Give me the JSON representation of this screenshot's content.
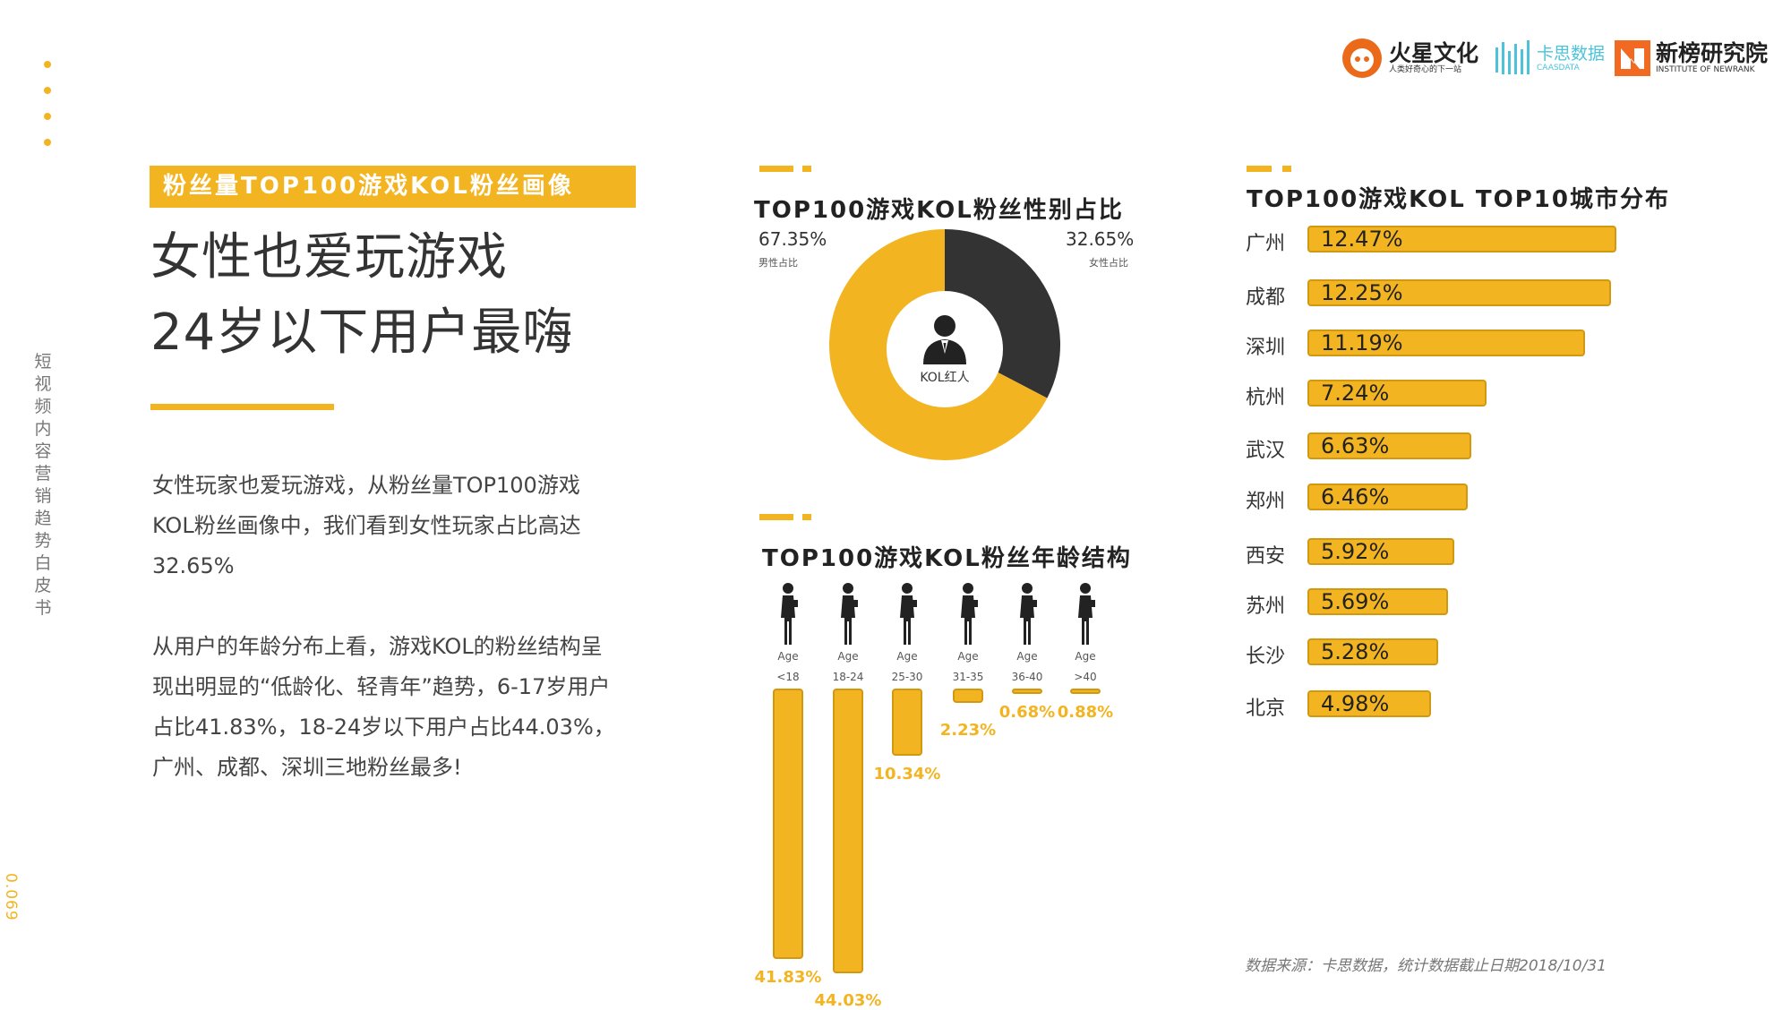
{
  "brand": {
    "logo1_name": "火星文化",
    "logo1_sub": "人类好奇心的下一站",
    "logo2_name": "卡思数据",
    "logo2_sub": "CAASDATA",
    "logo3_name": "新榜研究院",
    "logo3_sub": "INSTITUTE OF NEWRANK",
    "accent": "#f3b421",
    "dark": "#333333"
  },
  "side": {
    "vertical_title": "短视频内容营销趋势白皮书",
    "page_number": "0.069"
  },
  "left": {
    "tag": "粉丝量TOP100游戏KOL粉丝画像",
    "title_line1": "女性也爱玩游戏",
    "title_line2": "24岁以下用户最嗨",
    "para1": "女性玩家也爱玩游戏，从粉丝量TOP100游戏KOL粉丝画像中，我们看到女性玩家占比高达32.65%",
    "para2": "从用户的年龄分布上看，游戏KOL的粉丝结构呈现出明显的“低龄化、轻青年”趋势，6-17岁用户占比41.83%，18-24岁以下用户占比44.03%，广州、成都、深圳三地粉丝最多!"
  },
  "gender": {
    "title": "TOP100游戏KOL粉丝性别占比",
    "male_pct": "67.35%",
    "male_label": "男性占比",
    "female_pct": "32.65%",
    "female_label": "女性占比",
    "center_label": "KOL红人"
  },
  "age": {
    "title": "TOP100游戏KOL粉丝年龄结构",
    "age_word": "Age"
  },
  "city": {
    "title": "TOP100游戏KOL  TOP10城市分布"
  },
  "source": "数据来源：卡思数据，统计数据截止日期2018/10/31",
  "chart_data": [
    {
      "type": "pie",
      "title": "TOP100游戏KOL粉丝性别占比",
      "categories": [
        "男性占比",
        "女性占比"
      ],
      "values": [
        67.35,
        32.65
      ],
      "colors": [
        "#f3b421",
        "#333333"
      ]
    },
    {
      "type": "bar",
      "title": "TOP100游戏KOL粉丝年龄结构",
      "categories": [
        "<18",
        "18-24",
        "25-30",
        "31-35",
        "36-40",
        ">40"
      ],
      "values": [
        41.83,
        44.03,
        10.34,
        2.23,
        0.68,
        0.88
      ],
      "labels": [
        "41.83%",
        "44.03%",
        "10.34%",
        "2.23%",
        "0.68%",
        "0.88%"
      ]
    },
    {
      "type": "bar",
      "title": "TOP100游戏KOL  TOP10城市分布",
      "categories": [
        "广州",
        "成都",
        "深圳",
        "杭州",
        "武汉",
        "郑州",
        "西安",
        "苏州",
        "长沙",
        "北京"
      ],
      "values": [
        12.47,
        12.25,
        11.19,
        7.24,
        6.63,
        6.46,
        5.92,
        5.69,
        5.28,
        4.98
      ],
      "labels": [
        "12.47%",
        "12.25%",
        "11.19%",
        "7.24%",
        "6.63%",
        "6.46%",
        "5.92%",
        "5.69%",
        "5.28%",
        "4.98%"
      ]
    }
  ]
}
